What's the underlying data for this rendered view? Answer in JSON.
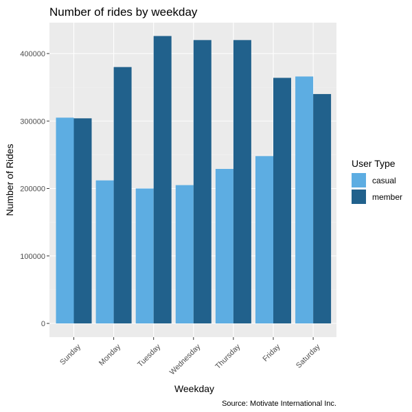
{
  "chart_data": {
    "type": "bar",
    "title": "Number of rides by weekday",
    "xlabel": "Weekday",
    "ylabel": "Number of Rides",
    "caption": "Source: Motivate International Inc.",
    "categories": [
      "Sunday",
      "Monday",
      "Tuesday",
      "Wednesday",
      "Thursday",
      "Friday",
      "Saturday"
    ],
    "series": [
      {
        "name": "casual",
        "color": "#5dade2",
        "values": [
          305000,
          212000,
          200000,
          205000,
          229000,
          248000,
          366000
        ]
      },
      {
        "name": "member",
        "color": "#21618c",
        "values": [
          304000,
          380000,
          426000,
          420000,
          420000,
          364000,
          340000
        ]
      }
    ],
    "ylim": [
      0,
      445000
    ],
    "yticks": [
      0,
      100000,
      200000,
      300000,
      400000
    ],
    "ytick_labels": [
      "0",
      "100000",
      "200000",
      "300000",
      "400000"
    ],
    "legend": {
      "title": "User Type",
      "position": "right"
    },
    "grid": true,
    "panel_background": "#ebebeb"
  }
}
